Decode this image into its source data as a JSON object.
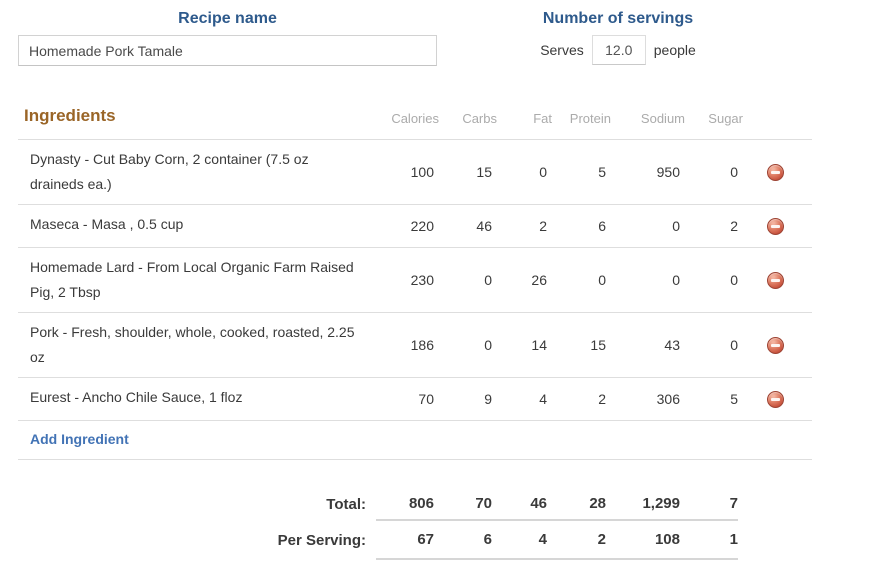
{
  "recipe": {
    "name_label": "Recipe name",
    "name_value": "Homemade Pork Tamale",
    "servings_label": "Number of servings",
    "serves_label": "Serves",
    "serves_value": "12.0",
    "people_label": "people"
  },
  "ingredients": {
    "heading": "Ingredients",
    "columns": [
      "Calories",
      "Carbs",
      "Fat",
      "Protein",
      "Sodium",
      "Sugar"
    ],
    "rows": [
      {
        "name": "Dynasty - Cut Baby Corn, 2 container (7.5 oz draineds ea.)",
        "calories": "100",
        "carbs": "15",
        "fat": "0",
        "protein": "5",
        "sodium": "950",
        "sugar": "0"
      },
      {
        "name": "Maseca - Masa , 0.5 cup",
        "calories": "220",
        "carbs": "46",
        "fat": "2",
        "protein": "6",
        "sodium": "0",
        "sugar": "2"
      },
      {
        "name": "Homemade Lard - From Local Organic Farm Raised Pig, 2 Tbsp",
        "calories": "230",
        "carbs": "0",
        "fat": "26",
        "protein": "0",
        "sodium": "0",
        "sugar": "0"
      },
      {
        "name": "Pork - Fresh, shoulder, whole, cooked, roasted, 2.25 oz",
        "calories": "186",
        "carbs": "0",
        "fat": "14",
        "protein": "15",
        "sodium": "43",
        "sugar": "0"
      },
      {
        "name": "Eurest - Ancho Chile Sauce, 1 floz",
        "calories": "70",
        "carbs": "9",
        "fat": "4",
        "protein": "2",
        "sodium": "306",
        "sugar": "5"
      }
    ],
    "add_label": "Add Ingredient",
    "delete_icon": "minus-circle",
    "delete_icon_color": "#c64f3a"
  },
  "totals": {
    "total_label": "Total:",
    "total": {
      "calories": "806",
      "carbs": "70",
      "fat": "46",
      "protein": "28",
      "sodium": "1,299",
      "sugar": "7"
    },
    "per_serving_label": "Per Serving:",
    "per_serving": {
      "calories": "67",
      "carbs": "6",
      "fat": "4",
      "protein": "2",
      "sodium": "108",
      "sugar": "1"
    }
  },
  "colors": {
    "heading_blue": "#2e5a8c",
    "ingredients_brown": "#9a6527",
    "link_blue": "#4273b5",
    "row_border": "#dedede",
    "muted_header": "#ababab"
  }
}
